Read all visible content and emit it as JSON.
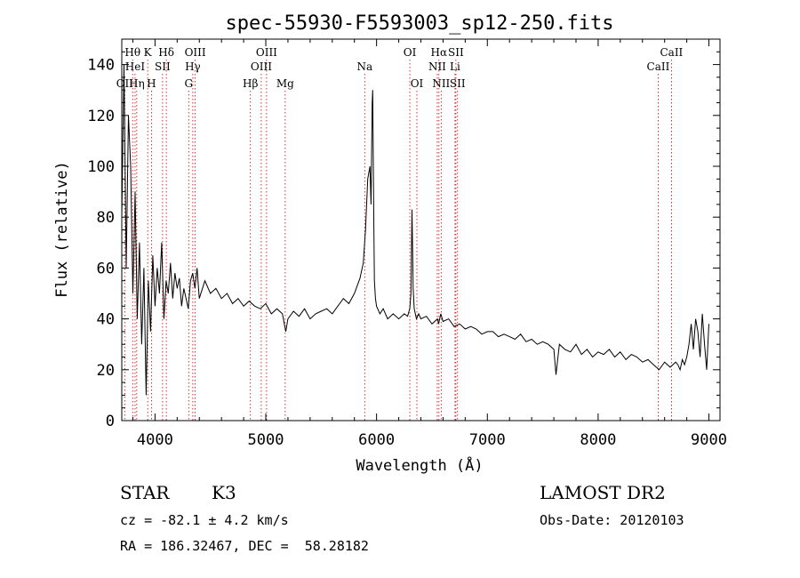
{
  "chart_data": {
    "type": "line",
    "title": "spec-55930-F5593003_sp12-250.fits",
    "xlabel": "Wavelength (Å)",
    "ylabel": "Flux (relative)",
    "xlim": [
      3700,
      9100
    ],
    "ylim": [
      0,
      150
    ],
    "xticks": [
      4000,
      5000,
      6000,
      7000,
      8000,
      9000
    ],
    "yticks": [
      0,
      20,
      40,
      60,
      80,
      100,
      120,
      140
    ],
    "grid": false,
    "series": [
      {
        "x": [
          3700,
          3720,
          3740,
          3760,
          3780,
          3800,
          3820,
          3840,
          3860,
          3880,
          3900,
          3920,
          3940,
          3960,
          3980,
          4000,
          4020,
          4040,
          4060,
          4080,
          4100,
          4120,
          4140,
          4160,
          4180,
          4200,
          4220,
          4240,
          4260,
          4280,
          4300,
          4320,
          4340,
          4360,
          4380,
          4400,
          4450,
          4500,
          4550,
          4600,
          4650,
          4700,
          4750,
          4800,
          4850,
          4900,
          4950,
          5000,
          5050,
          5100,
          5150,
          5180,
          5200,
          5250,
          5300,
          5350,
          5400,
          5450,
          5500,
          5550,
          5600,
          5650,
          5700,
          5750,
          5800,
          5850,
          5880,
          5900,
          5920,
          5940,
          5950,
          5960,
          5965,
          5970,
          5975,
          5980,
          5990,
          6000,
          6030,
          6060,
          6100,
          6150,
          6200,
          6250,
          6280,
          6300,
          6310,
          6320,
          6330,
          6340,
          6360,
          6380,
          6400,
          6450,
          6500,
          6550,
          6560,
          6580,
          6600,
          6650,
          6700,
          6750,
          6800,
          6850,
          6900,
          6950,
          7000,
          7050,
          7100,
          7150,
          7200,
          7250,
          7300,
          7350,
          7400,
          7450,
          7500,
          7550,
          7600,
          7620,
          7650,
          7700,
          7750,
          7800,
          7850,
          7900,
          7950,
          8000,
          8050,
          8100,
          8150,
          8200,
          8250,
          8300,
          8350,
          8400,
          8450,
          8500,
          8550,
          8600,
          8650,
          8700,
          8720,
          8740,
          8760,
          8780,
          8800,
          8820,
          8840,
          8860,
          8880,
          8900,
          8920,
          8940,
          8960,
          8980,
          9000
        ],
        "y": [
          80,
          140,
          60,
          120,
          100,
          50,
          90,
          40,
          70,
          30,
          60,
          10,
          55,
          35,
          65,
          45,
          60,
          50,
          70,
          40,
          55,
          50,
          62,
          48,
          58,
          52,
          56,
          45,
          52,
          48,
          44,
          55,
          58,
          52,
          60,
          48,
          55,
          50,
          52,
          48,
          50,
          46,
          48,
          45,
          47,
          45,
          44,
          46,
          42,
          44,
          42,
          35,
          40,
          43,
          41,
          44,
          40,
          42,
          43,
          44,
          42,
          45,
          48,
          46,
          50,
          56,
          62,
          75,
          95,
          100,
          85,
          125,
          130,
          105,
          80,
          55,
          48,
          45,
          42,
          44,
          40,
          42,
          40,
          42,
          41,
          44,
          50,
          83,
          52,
          44,
          40,
          42,
          40,
          41,
          38,
          40,
          38,
          42,
          39,
          40,
          37,
          38,
          36,
          37,
          36,
          34,
          35,
          35,
          33,
          34,
          33,
          32,
          34,
          31,
          32,
          30,
          31,
          30,
          28,
          18,
          30,
          28,
          27,
          30,
          26,
          28,
          25,
          27,
          26,
          28,
          25,
          27,
          24,
          26,
          25,
          23,
          24,
          22,
          20,
          23,
          21,
          23,
          22,
          20,
          24,
          22,
          25,
          30,
          38,
          28,
          40,
          35,
          25,
          42,
          30,
          20,
          38
        ]
      }
    ],
    "line_markers": [
      {
        "label": "OII",
        "x": 3727,
        "row": 2
      },
      {
        "label": "Hθ",
        "x": 3798,
        "row": 0
      },
      {
        "label": "HeI",
        "x": 3820,
        "row": 1
      },
      {
        "label": "Hη",
        "x": 3835,
        "row": 2
      },
      {
        "label": "K",
        "x": 3934,
        "row": 0
      },
      {
        "label": "SII",
        "x": 4068,
        "row": 1
      },
      {
        "label": "H",
        "x": 3968,
        "row": 2
      },
      {
        "label": "Hδ",
        "x": 4102,
        "row": 0
      },
      {
        "label": "OIII",
        "x": 4363,
        "row": 0
      },
      {
        "label": "Hγ",
        "x": 4341,
        "row": 1
      },
      {
        "label": "G",
        "x": 4304,
        "row": 2
      },
      {
        "label": "OIII",
        "x": 5007,
        "row": 0
      },
      {
        "label": "OIII",
        "x": 4959,
        "row": 1
      },
      {
        "label": "Hβ",
        "x": 4861,
        "row": 2
      },
      {
        "label": "Mg",
        "x": 5175,
        "row": 2
      },
      {
        "label": "Na",
        "x": 5893,
        "row": 1
      },
      {
        "label": "OI",
        "x": 6300,
        "row": 0
      },
      {
        "label": "OI",
        "x": 6364,
        "row": 2
      },
      {
        "label": "Hα",
        "x": 6563,
        "row": 0
      },
      {
        "label": "SII",
        "x": 6716,
        "row": 0
      },
      {
        "label": "NII",
        "x": 6548,
        "row": 1
      },
      {
        "label": "Li",
        "x": 6708,
        "row": 1
      },
      {
        "label": "NII",
        "x": 6583,
        "row": 2
      },
      {
        "label": "SII",
        "x": 6731,
        "row": 2
      },
      {
        "label": "CaII",
        "x": 8662,
        "row": 0
      },
      {
        "label": "CaII",
        "x": 8542,
        "row": 1
      }
    ]
  },
  "info": {
    "object_class": "STAR",
    "subclass": "K3",
    "survey": "LAMOST DR2",
    "redshift": "cz = -82.1 ± 4.2 km/s",
    "obs_date": "Obs-Date: 20120103",
    "coords": "RA = 186.32467, DEC =  58.28182"
  }
}
